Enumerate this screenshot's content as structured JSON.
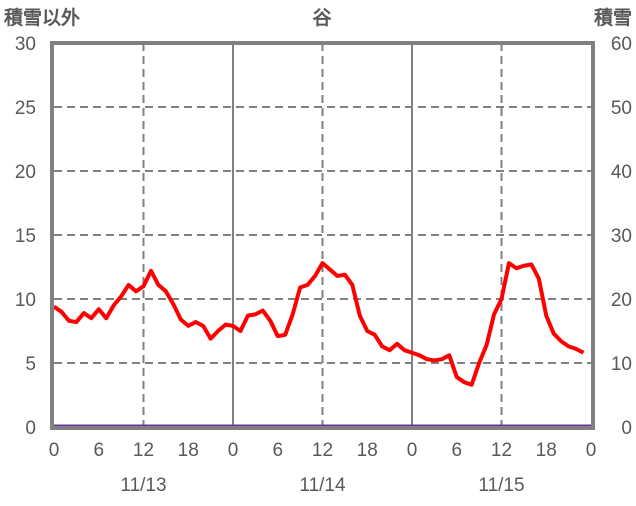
{
  "chart_data": {
    "type": "line",
    "title": "谷",
    "ylabel_left": "積雪以外",
    "ylabel_right": "積雪",
    "ylim_left": [
      0,
      30
    ],
    "ylim_right": [
      0,
      60
    ],
    "yticks_left": [
      "0",
      "5",
      "10",
      "15",
      "20",
      "25",
      "30"
    ],
    "yticks_right": [
      "0",
      "10",
      "20",
      "30",
      "40",
      "50",
      "60"
    ],
    "xticks": [
      "0",
      "6",
      "12",
      "18",
      "0",
      "6",
      "12",
      "18",
      "0",
      "6",
      "12",
      "18",
      "0"
    ],
    "date_labels": [
      "11/13",
      "11/14",
      "11/15"
    ],
    "x_hours_range": [
      0,
      72
    ],
    "grid": true,
    "series": [
      {
        "name": "積雪以外",
        "color": "#ff0000",
        "axis": "left",
        "values": [
          9.4,
          9.0,
          8.3,
          8.2,
          8.9,
          8.5,
          9.2,
          8.5,
          9.5,
          10.2,
          11.1,
          10.6,
          11.0,
          12.2,
          11.1,
          10.6,
          9.6,
          8.4,
          7.9,
          8.2,
          7.9,
          6.9,
          7.5,
          8.0,
          7.9,
          7.5,
          8.7,
          8.8,
          9.1,
          8.3,
          7.1,
          7.2,
          8.8,
          10.9,
          11.1,
          11.8,
          12.8,
          12.3,
          11.8,
          11.9,
          11.1,
          8.7,
          7.5,
          7.2,
          6.3,
          6.0,
          6.5,
          6.0,
          5.8,
          5.6,
          5.3,
          5.2,
          5.3,
          5.6,
          3.9,
          3.5,
          3.3,
          5.0,
          6.4,
          8.8,
          10.0,
          12.8,
          12.4,
          12.6,
          12.7,
          11.6,
          8.7,
          7.3,
          6.7,
          6.3,
          6.1,
          5.8
        ]
      },
      {
        "name": "積雪",
        "color": "#7030a0",
        "axis": "right",
        "values": [
          0,
          0
        ]
      }
    ]
  }
}
